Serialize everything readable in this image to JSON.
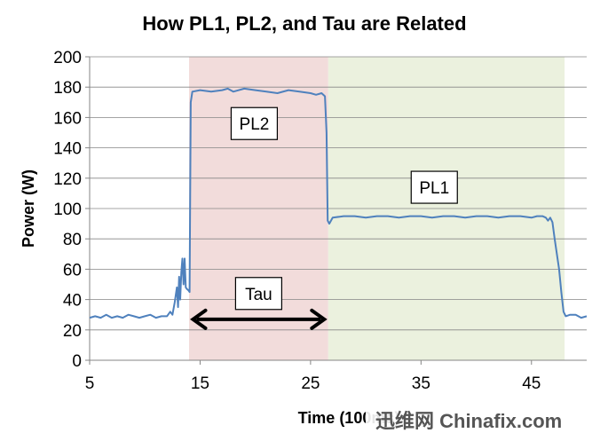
{
  "chart_data": {
    "type": "line",
    "title": "How PL1, PL2, and Tau are Related",
    "xlabel": "Time (100ms)",
    "ylabel": "Power (W)",
    "xlim": [
      5,
      50
    ],
    "ylim": [
      0,
      200
    ],
    "x_ticks": [
      5,
      15,
      25,
      35,
      45
    ],
    "y_ticks": [
      0,
      20,
      40,
      60,
      80,
      100,
      120,
      140,
      160,
      180,
      200
    ],
    "grid": "horizontal",
    "legend": "none",
    "regions": [
      {
        "label": "PL2",
        "x_start": 14,
        "x_end": 26.6,
        "color": "#f2dcdb"
      },
      {
        "label": "PL1",
        "x_start": 26.6,
        "x_end": 48,
        "color": "#ebf1de"
      }
    ],
    "annotations": [
      {
        "text": "PL2",
        "x": 19.9,
        "y": 156
      },
      {
        "text": "PL1",
        "x": 36.2,
        "y": 114
      },
      {
        "text": "Tau",
        "x": 20.3,
        "y": 44
      }
    ],
    "arrow": {
      "x_start": 14.2,
      "x_end": 26.4,
      "y": 27
    },
    "series": [
      {
        "color": "#4f81bd",
        "x": [
          5.0,
          5.5,
          6.0,
          6.5,
          7.0,
          7.5,
          8.0,
          8.5,
          9.0,
          9.5,
          10.0,
          10.5,
          11.0,
          11.5,
          12.0,
          12.3,
          12.5,
          12.7,
          12.9,
          13.0,
          13.1,
          13.2,
          13.3,
          13.4,
          13.5,
          13.6,
          13.7,
          13.8,
          13.95,
          14.05,
          14.15,
          14.3,
          15.0,
          16.0,
          17.0,
          17.5,
          18.0,
          19.0,
          20.0,
          21.0,
          22.0,
          23.0,
          24.0,
          25.0,
          25.5,
          26.0,
          26.3,
          26.45,
          26.55,
          26.7,
          27.0,
          28.0,
          29.0,
          30.0,
          31.0,
          32.0,
          33.0,
          34.0,
          35.0,
          36.0,
          37.0,
          38.0,
          39.0,
          40.0,
          41.0,
          42.0,
          43.0,
          44.0,
          45.0,
          45.5,
          46.0,
          46.3,
          46.5,
          46.7,
          46.9,
          47.1,
          47.3,
          47.5,
          47.7,
          47.9,
          48.1,
          48.5,
          49.0,
          49.5,
          50.0
        ],
        "y": [
          28,
          29,
          28,
          30,
          28,
          29,
          28,
          30,
          29,
          28,
          29,
          30,
          28,
          29,
          29,
          32,
          30,
          38,
          48,
          35,
          55,
          40,
          58,
          67,
          50,
          67,
          48,
          47,
          46,
          45,
          170,
          177,
          178,
          177,
          178,
          179,
          177,
          179,
          178,
          177,
          176,
          178,
          177,
          176,
          175,
          176,
          174,
          150,
          92,
          90,
          94,
          95,
          95,
          94,
          95,
          95,
          94,
          95,
          95,
          94,
          95,
          95,
          94,
          95,
          95,
          94,
          95,
          95,
          94,
          95,
          95,
          94,
          92,
          94,
          91,
          80,
          70,
          60,
          45,
          32,
          29,
          30,
          30,
          28,
          29
        ]
      }
    ]
  },
  "watermark": {
    "text": "迅维网 Chinafix.com"
  }
}
